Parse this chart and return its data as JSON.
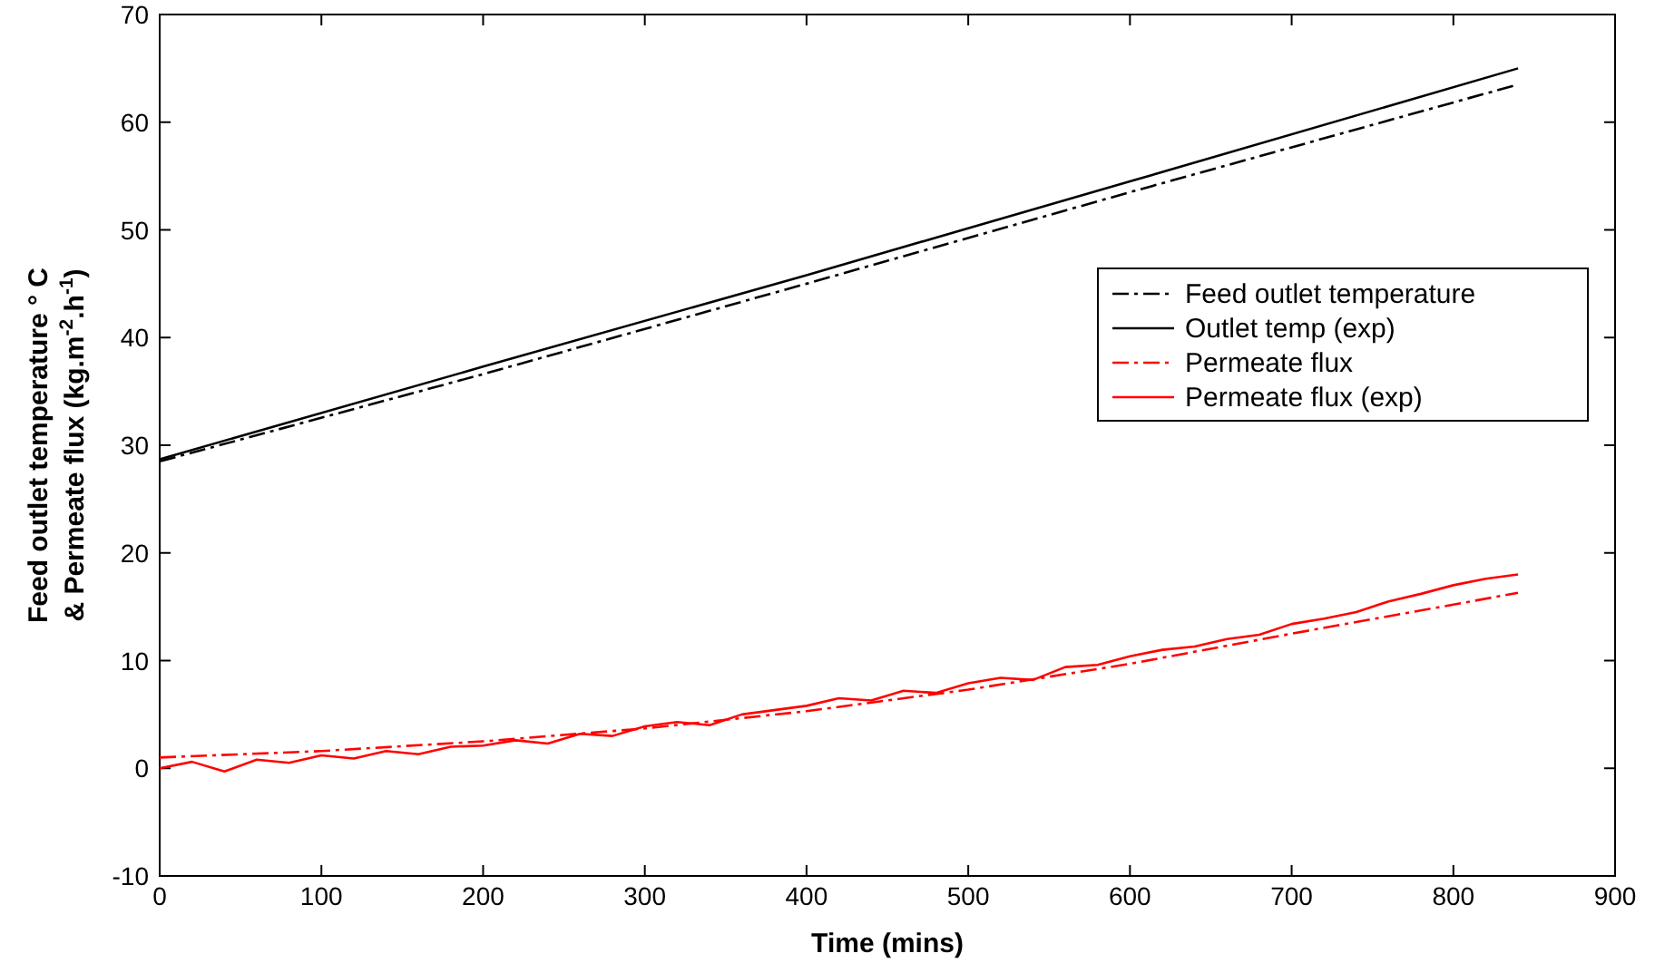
{
  "chart_data": {
    "type": "line",
    "xlabel": "Time (mins)",
    "ylabel": "Feed outlet temperature ° C\n& Permeate flux (kg.m$^{-2}$.h$^{-1}$)",
    "xlim": [
      0,
      900
    ],
    "xticks": [
      0,
      100,
      200,
      300,
      400,
      500,
      600,
      700,
      800,
      900
    ],
    "ylim": [
      -10,
      70
    ],
    "yticks": [
      -10,
      0,
      10,
      20,
      30,
      40,
      50,
      60,
      70
    ],
    "grid": false,
    "legend": "right",
    "series": [
      {
        "name": "Feed outlet temperature",
        "color": "#000000",
        "line_style": "dashed",
        "x": [
          0,
          200,
          400,
          600,
          840
        ],
        "values": [
          28.5,
          36.6,
          45,
          53.5,
          63.5
        ]
      },
      {
        "name": "Outlet temp (exp)",
        "color": "#000000",
        "line_style": "solid",
        "x": [
          0,
          200,
          400,
          600,
          840
        ],
        "values": [
          28.7,
          37.3,
          45.8,
          54.5,
          65
        ]
      },
      {
        "name": "Permeate flux",
        "color": "#ff0000",
        "line_style": "dashed",
        "x": [
          0,
          100,
          200,
          300,
          400,
          500,
          600,
          700,
          800,
          840
        ],
        "values": [
          1,
          1.6,
          2.5,
          3.7,
          5.3,
          7.3,
          9.7,
          12.5,
          15.2,
          16.3
        ]
      },
      {
        "name": "Permeate flux (exp)",
        "color": "#ff0000",
        "line_style": "solid",
        "x": [
          0,
          20,
          40,
          60,
          80,
          100,
          120,
          140,
          160,
          180,
          200,
          220,
          240,
          260,
          280,
          300,
          320,
          340,
          360,
          380,
          400,
          420,
          440,
          460,
          480,
          500,
          520,
          540,
          560,
          580,
          600,
          620,
          640,
          660,
          680,
          700,
          720,
          740,
          760,
          780,
          800,
          820,
          840
        ],
        "values": [
          0,
          0.6,
          -0.3,
          0.8,
          0.5,
          1.2,
          0.9,
          1.6,
          1.3,
          2,
          2.1,
          2.6,
          2.3,
          3.2,
          3,
          3.9,
          4.3,
          4,
          5,
          5.4,
          5.8,
          6.5,
          6.3,
          7.2,
          7,
          7.9,
          8.4,
          8.2,
          9.4,
          9.6,
          10.4,
          11,
          11.3,
          12,
          12.4,
          13.4,
          13.9,
          14.5,
          15.5,
          16.2,
          17,
          17.6,
          18
        ]
      }
    ]
  }
}
